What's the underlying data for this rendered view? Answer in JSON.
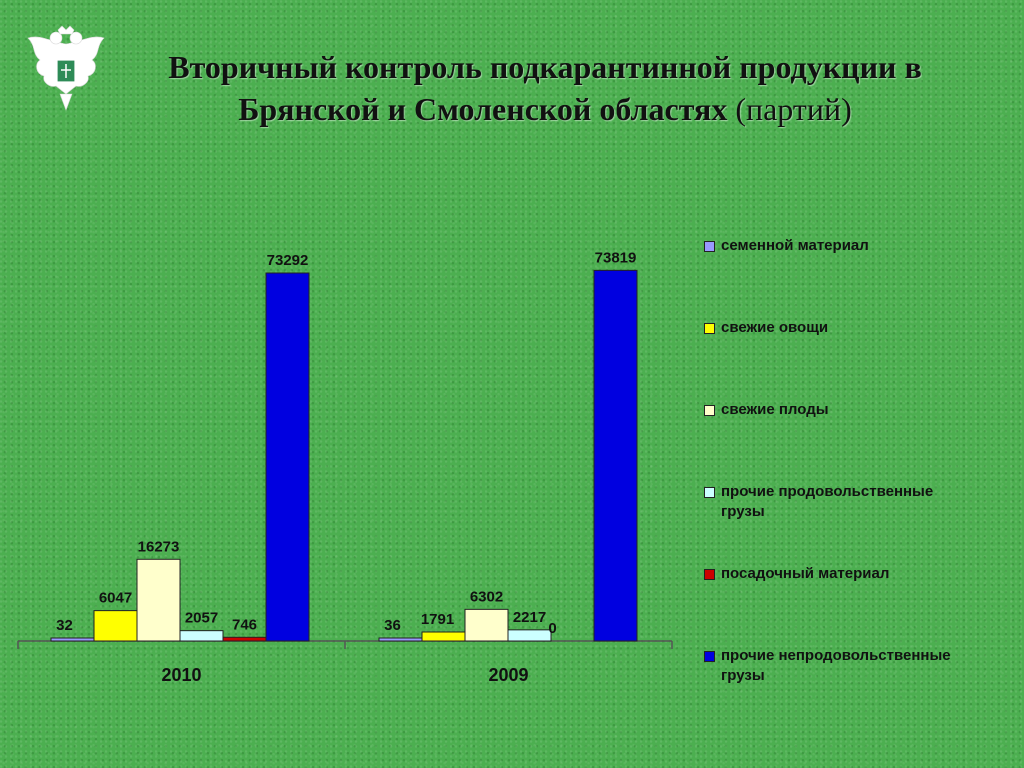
{
  "title": {
    "main": "Вторичный контроль подкарантинной продукции в Брянской и Смоленской областях",
    "unit": "(партий)"
  },
  "chart_data": {
    "type": "bar",
    "categories": [
      "2010",
      "2009"
    ],
    "series": [
      {
        "name": "семенной материал",
        "values": [
          32,
          36
        ],
        "color": "#9999ff"
      },
      {
        "name": "свежие овощи",
        "values": [
          6047,
          1791
        ],
        "color": "#ffff00"
      },
      {
        "name": "свежие плоды",
        "values": [
          16273,
          6302
        ],
        "color": "#ffffcc"
      },
      {
        "name": "прочие продовольственные грузы",
        "values": [
          2057,
          2217
        ],
        "color": "#ccffff"
      },
      {
        "name": "посадочный материал",
        "values": [
          746,
          0
        ],
        "color": "#cc0000"
      },
      {
        "name": "прочие непродовольственные грузы",
        "values": [
          73292,
          73819
        ],
        "color": "#0000e0"
      }
    ],
    "ylim": [
      0,
      80000
    ],
    "legend_position": "right"
  }
}
